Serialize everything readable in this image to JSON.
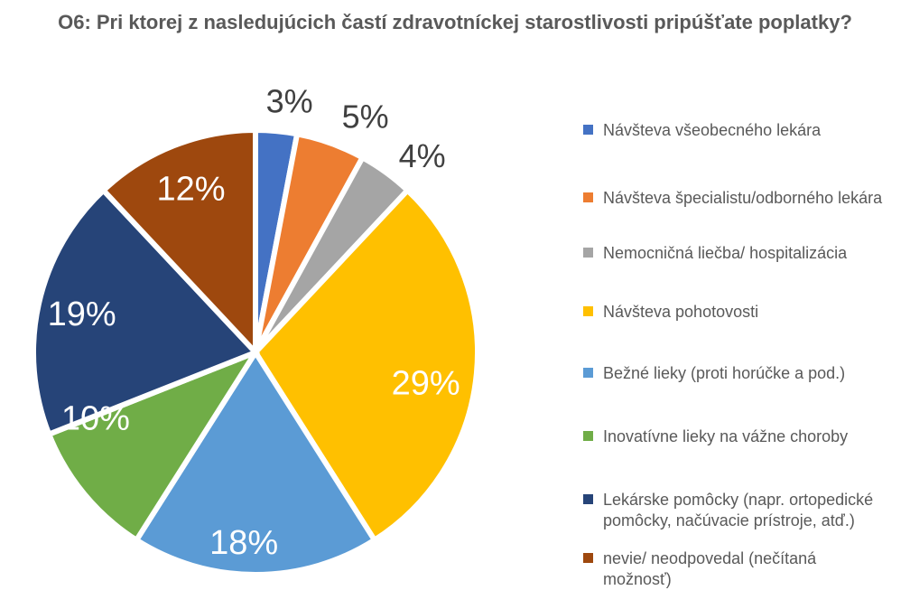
{
  "chart_data": {
    "type": "pie",
    "title": "O6: Pri ktorej z nasledujúcich častí zdravotníckej starostlivosti pripúšťate poplatky?",
    "value_suffix": "%",
    "start_angle_deg": 0,
    "direction": "clockwise",
    "legend_position": "right",
    "background": "#FFFFFF",
    "title_color": "#595959",
    "legend_text_color": "#595959",
    "label_color_inside": "#FFFFFF",
    "label_color_outside": "#404040",
    "slice_border_color": "#FFFFFF",
    "slices": [
      {
        "label": "Návšteva všeobecného lekára",
        "value": 3,
        "display_value": "3%",
        "color": "#4472C4",
        "label_placement": "outside"
      },
      {
        "label": "Návšteva špecialistu/odborného lekára",
        "value": 5,
        "display_value": "5%",
        "color": "#ED7D31",
        "label_placement": "outside"
      },
      {
        "label": "Nemocničná liečba/ hospitalizácia",
        "value": 4,
        "display_value": "4%",
        "color": "#A5A5A5",
        "label_placement": "outside"
      },
      {
        "label": "Návšteva pohotovosti",
        "value": 29,
        "display_value": "29%",
        "color": "#FFC000",
        "label_placement": "inside"
      },
      {
        "label": "Bežné lieky (proti horúčke a pod.)",
        "value": 18,
        "display_value": "18%",
        "color": "#5B9BD5",
        "label_placement": "inside"
      },
      {
        "label": "Inovatívne lieky na vážne choroby",
        "value": 10,
        "display_value": "10%",
        "color": "#70AD47",
        "label_placement": "inside"
      },
      {
        "label": "Lekárske pomôcky (napr. ortopedické pomôcky, načúvacie prístroje, atď.)",
        "value": 19,
        "display_value": "19%",
        "color": "#264478",
        "label_placement": "inside"
      },
      {
        "label": "nevie/ neodpovedal (nečítaná možnosť)",
        "value": 12,
        "display_value": "12%",
        "color": "#9E480E",
        "label_placement": "inside"
      }
    ]
  }
}
